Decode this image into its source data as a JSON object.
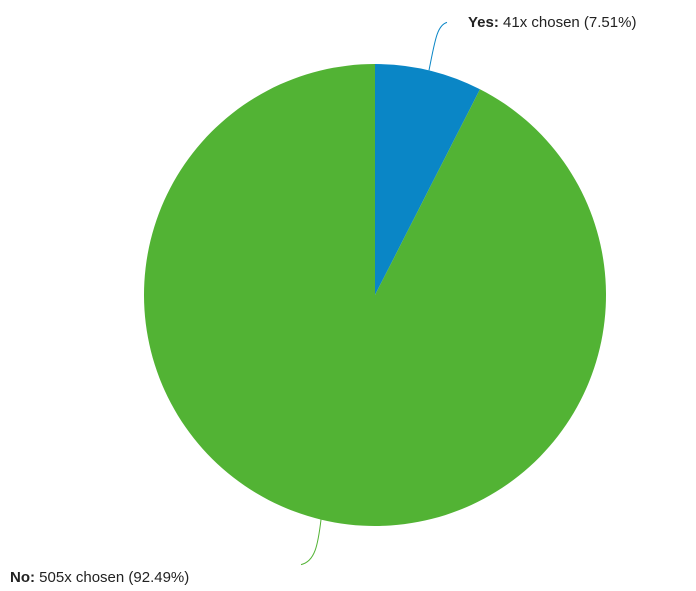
{
  "chart_data": {
    "type": "pie",
    "slices": [
      {
        "name": "Yes",
        "count": 41,
        "percent": 7.51,
        "color": "#0a86c6",
        "label": {
          "name": "Yes:",
          "rest": " 41x chosen (7.51%)"
        }
      },
      {
        "name": "No",
        "count": 505,
        "percent": 92.49,
        "color": "#52b334",
        "label": {
          "name": "No:",
          "rest": " 505x chosen (92.49%)"
        }
      }
    ]
  }
}
